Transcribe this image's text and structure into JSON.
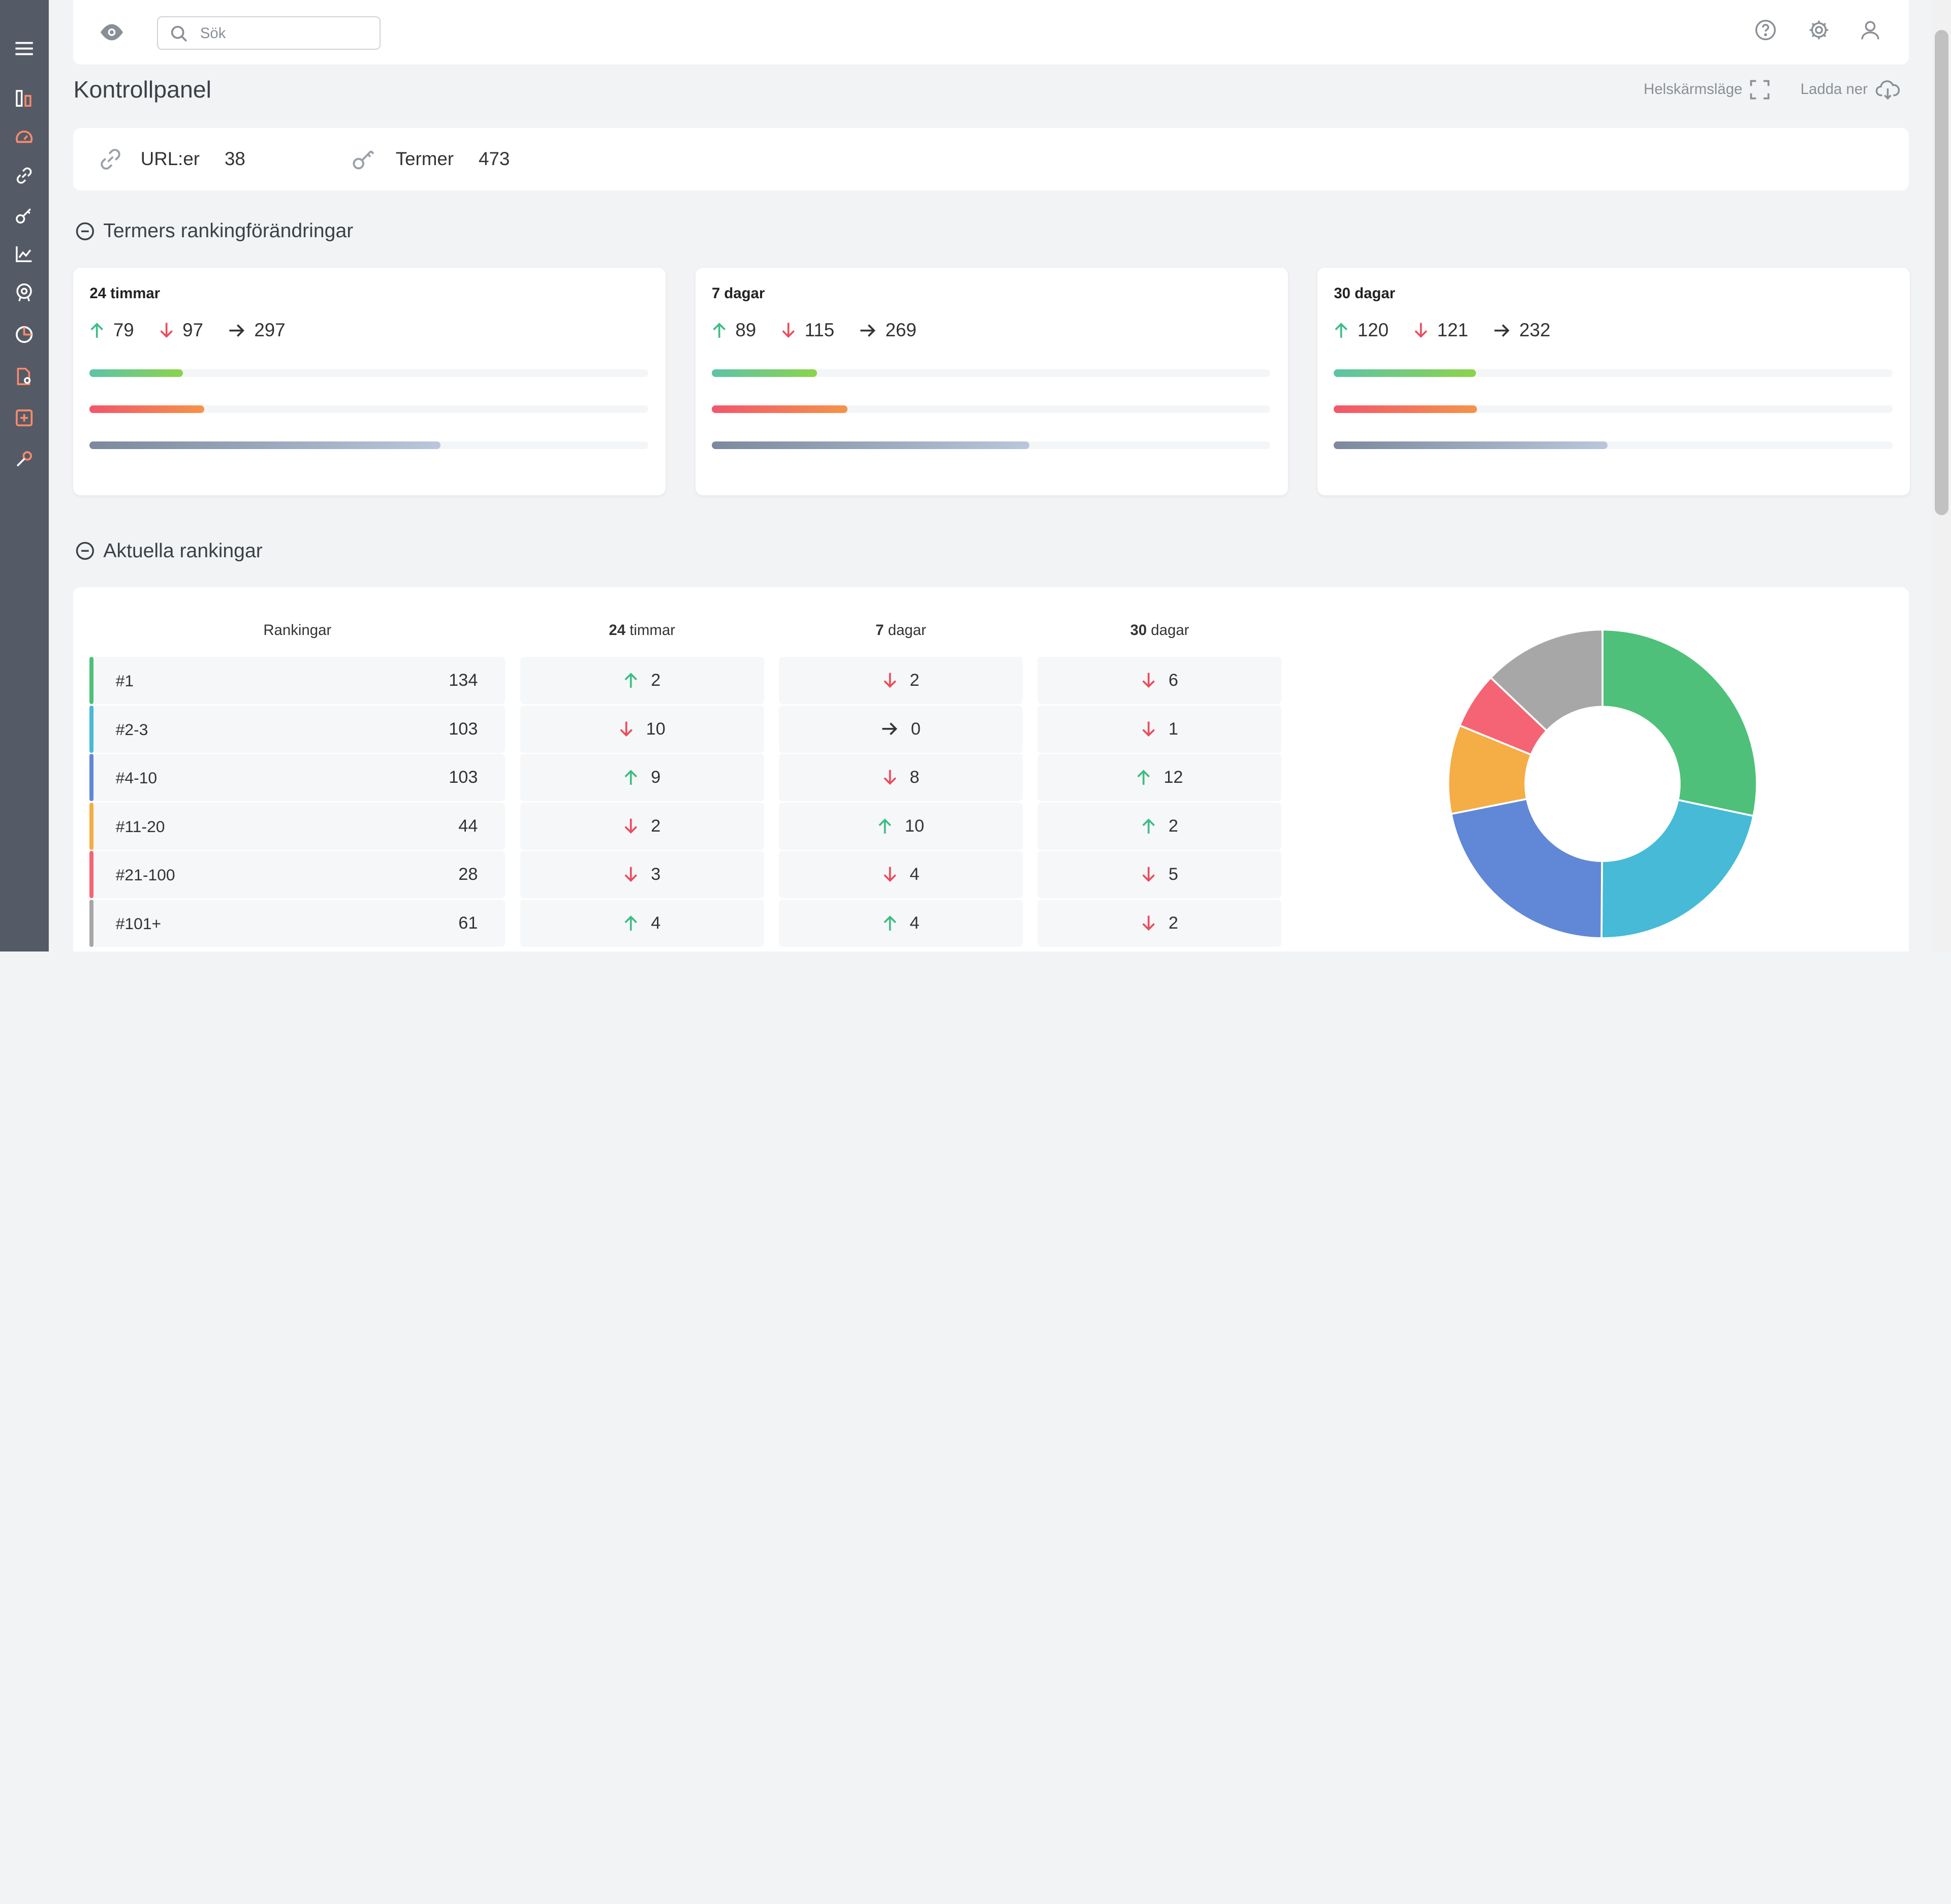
{
  "topbar": {
    "search_placeholder": "Sök"
  },
  "page": {
    "title": "Kontrollpanel",
    "fullscreen_label": "Helskärmsläge",
    "download_label": "Ladda ner"
  },
  "stats": {
    "urls_label": "URL:er",
    "urls_value": "38",
    "terms_label": "Termer",
    "terms_value": "473"
  },
  "changes": {
    "title": "Termers rankingförändringar",
    "cards": [
      {
        "title": "24 timmar",
        "up": "79",
        "down": "97",
        "same": "297",
        "up_frac": 0.167,
        "down_frac": 0.205,
        "same_frac": 0.628
      },
      {
        "title": "7 dagar",
        "up": "89",
        "down": "115",
        "same": "269",
        "up_frac": 0.188,
        "down_frac": 0.243,
        "same_frac": 0.569
      },
      {
        "title": "30 dagar",
        "up": "120",
        "down": "121",
        "same": "232",
        "up_frac": 0.254,
        "down_frac": 0.256,
        "same_frac": 0.49
      }
    ]
  },
  "rankings": {
    "title": "Aktuella rankingar",
    "col_rank": "Rankingar",
    "col_24h_num": "24",
    "col_24h_unit": " timmar",
    "col_7d_num": "7",
    "col_7d_unit": " dagar",
    "col_30d_num": "30",
    "col_30d_unit": " dagar",
    "rows": [
      {
        "label": "#1",
        "value": "134",
        "color": "#4ec07a",
        "d24": "2",
        "d24_dir": "up",
        "d7": "2",
        "d7_dir": "down",
        "d30": "6",
        "d30_dir": "down"
      },
      {
        "label": "#2-3",
        "value": "103",
        "color": "#46bad6",
        "d24": "10",
        "d24_dir": "down",
        "d7": "0",
        "d7_dir": "same",
        "d30": "1",
        "d30_dir": "down"
      },
      {
        "label": "#4-10",
        "value": "103",
        "color": "#6088d6",
        "d24": "9",
        "d24_dir": "up",
        "d7": "8",
        "d7_dir": "down",
        "d30": "12",
        "d30_dir": "up"
      },
      {
        "label": "#11-20",
        "value": "44",
        "color": "#f5ad45",
        "d24": "2",
        "d24_dir": "down",
        "d7": "10",
        "d7_dir": "up",
        "d30": "2",
        "d30_dir": "up"
      },
      {
        "label": "#21-100",
        "value": "28",
        "color": "#f56474",
        "d24": "3",
        "d24_dir": "down",
        "d7": "4",
        "d7_dir": "down",
        "d30": "5",
        "d30_dir": "down"
      },
      {
        "label": "#101+",
        "value": "61",
        "color": "#a7a7a7",
        "d24": "4",
        "d24_dir": "up",
        "d7": "4",
        "d7_dir": "up",
        "d30": "2",
        "d30_dir": "down"
      }
    ]
  },
  "chart_data": {
    "type": "pie",
    "categories": [
      "#1",
      "#2-3",
      "#4-10",
      "#11-20",
      "#21-100",
      "#101+"
    ],
    "values": [
      134,
      103,
      103,
      44,
      28,
      61
    ],
    "colors": [
      "#4ec07a",
      "#46bad6",
      "#6088d6",
      "#f5ad45",
      "#f56474",
      "#a7a7a7"
    ]
  },
  "colors": {
    "up": "#3dbd86",
    "down": "#ec4b5b",
    "same": "#333333",
    "sidebar": "#545b67",
    "sidebar_accent": "#ff8a6a"
  }
}
